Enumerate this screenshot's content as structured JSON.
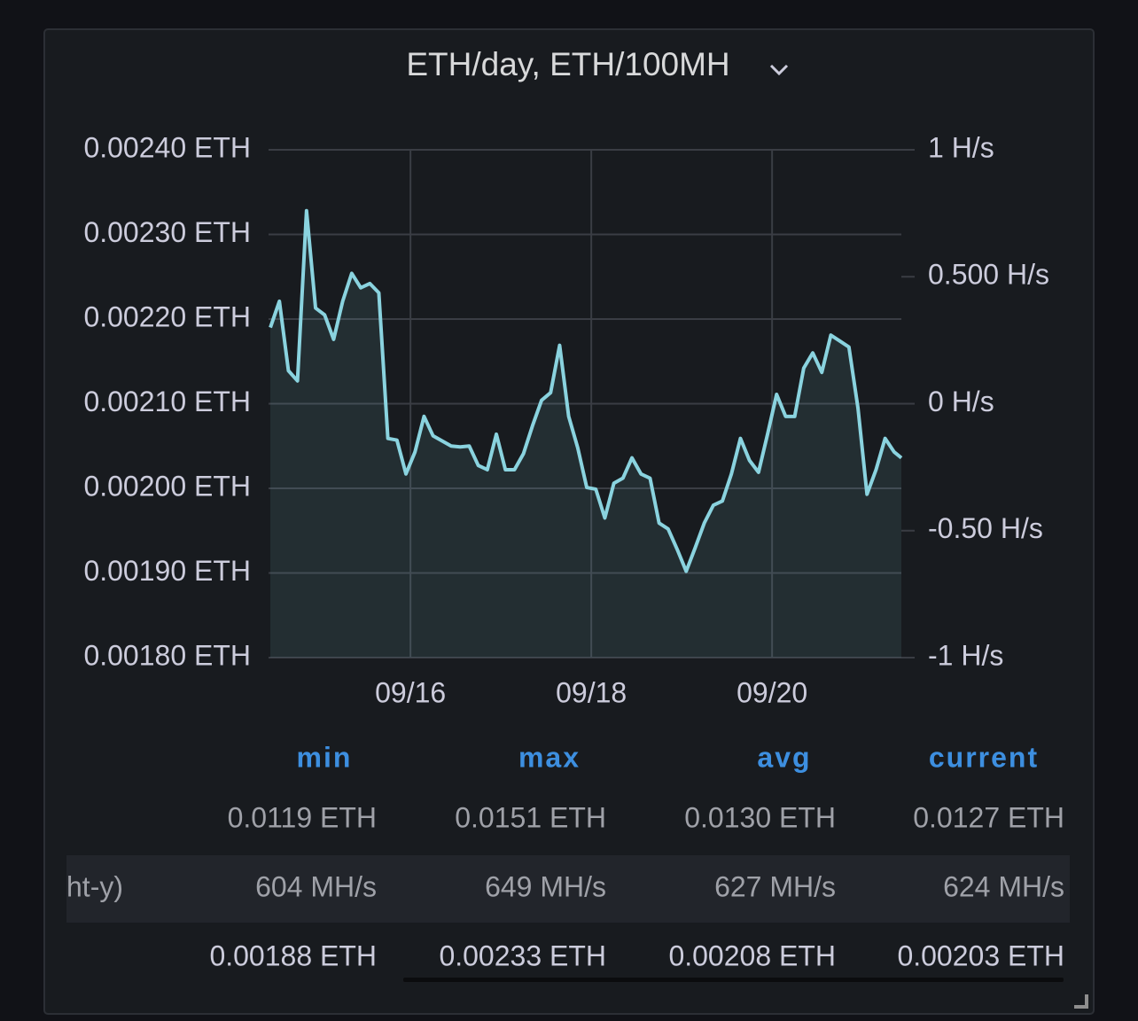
{
  "chart_data": {
    "type": "line",
    "title": "ETH/day, ETH/100MH",
    "x": [
      14.45,
      14.55,
      14.65,
      14.75,
      14.85,
      14.95,
      15.05,
      15.15,
      15.25,
      15.35,
      15.45,
      15.55,
      15.65,
      15.75,
      15.85,
      15.95,
      16.05,
      16.15,
      16.25,
      16.35,
      16.45,
      16.55,
      16.65,
      16.75,
      16.85,
      16.95,
      17.05,
      17.15,
      17.25,
      17.35,
      17.45,
      17.55,
      17.65,
      17.75,
      17.85,
      17.95,
      18.05,
      18.15,
      18.25,
      18.35,
      18.45,
      18.55,
      18.65,
      18.75,
      18.85,
      18.95,
      19.05,
      19.15,
      19.25,
      19.35,
      19.45,
      19.55,
      19.65,
      19.75,
      19.85,
      19.95,
      20.05,
      20.15,
      20.25,
      20.35,
      20.45,
      20.55,
      20.65,
      20.75,
      20.85,
      20.95,
      21.05,
      21.15,
      21.25,
      21.35,
      21.43
    ],
    "series": [
      {
        "color": "#8ad3df",
        "values": [
          0.00219,
          0.002221,
          0.002139,
          0.002127,
          0.002328,
          0.002213,
          0.002205,
          0.002176,
          0.002221,
          0.002254,
          0.002237,
          0.002242,
          0.002231,
          0.002059,
          0.002057,
          0.002017,
          0.002043,
          0.002085,
          0.002062,
          0.002056,
          0.00205,
          0.002049,
          0.00205,
          0.002027,
          0.002022,
          0.002064,
          0.002022,
          0.002022,
          0.002041,
          0.002074,
          0.002104,
          0.002113,
          0.002169,
          0.002085,
          0.002048,
          0.002001,
          0.001999,
          0.001965,
          0.002006,
          0.002012,
          0.002036,
          0.002017,
          0.002012,
          0.001959,
          0.001952,
          0.001928,
          0.001902,
          0.00193,
          0.001959,
          0.00198,
          0.001985,
          0.002017,
          0.002059,
          0.002033,
          0.002019,
          0.002064,
          0.002111,
          0.002085,
          0.002085,
          0.002142,
          0.00216,
          0.002137,
          0.002181,
          0.002174,
          0.002167,
          0.002095,
          0.001993,
          0.002022,
          0.002059,
          0.002043,
          0.002036
        ]
      }
    ],
    "xlim": [
      14.43,
      21.43
    ],
    "xticks": [
      {
        "value": 16,
        "label": "09/16"
      },
      {
        "value": 18,
        "label": "09/18"
      },
      {
        "value": 20,
        "label": "09/20"
      }
    ],
    "ylim": [
      0.0018,
      0.0024
    ],
    "yticks": [
      {
        "value": 0.0018,
        "label": "0.00180 ETH"
      },
      {
        "value": 0.0019,
        "label": "0.00190 ETH"
      },
      {
        "value": 0.002,
        "label": "0.00200 ETH"
      },
      {
        "value": 0.0021,
        "label": "0.00210 ETH"
      },
      {
        "value": 0.0022,
        "label": "0.00220 ETH"
      },
      {
        "value": 0.0023,
        "label": "0.00230 ETH"
      },
      {
        "value": 0.0024,
        "label": "0.00240 ETH"
      }
    ],
    "y2lim": [
      -1,
      1
    ],
    "y2ticks": [
      {
        "value": -1,
        "label": "-1 H/s"
      },
      {
        "value": -0.5,
        "label": "-0.50 H/s"
      },
      {
        "value": 0,
        "label": "0 H/s"
      },
      {
        "value": 0.5,
        "label": "0.500 H/s"
      },
      {
        "value": 1,
        "label": "1 H/s"
      }
    ],
    "grid": true
  },
  "legend": {
    "columns": [
      "min",
      "max",
      "avg",
      "current"
    ],
    "rows": [
      {
        "values": [
          "0.0119 ETH",
          "0.0151 ETH",
          "0.0130 ETH",
          "0.0127 ETH"
        ]
      },
      {
        "name": "ht-y)",
        "values": [
          "604 MH/s",
          "649 MH/s",
          "627 MH/s",
          "624 MH/s"
        ]
      },
      {
        "values": [
          "0.00188 ETH",
          "0.00233 ETH",
          "0.00208 ETH",
          "0.00203 ETH"
        ]
      }
    ]
  }
}
